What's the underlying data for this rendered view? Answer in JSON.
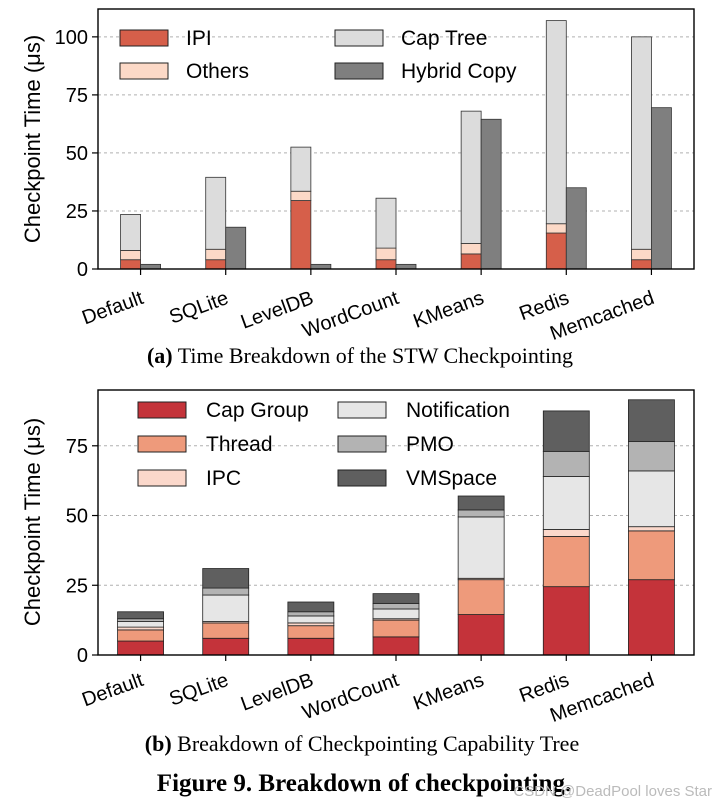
{
  "figure_title": "Figure 9. Breakdown of checkpointing.",
  "watermark": "CSDN @DeadPool loves Star",
  "chart_data": [
    {
      "id": "a",
      "type": "bar",
      "caption_prefix": "(a)",
      "caption": "Time Breakdown of the STW Checkpointing",
      "ylabel": "Checkpoint Time (μs)",
      "ylim": [
        0,
        112
      ],
      "yticks": [
        0,
        25,
        50,
        75,
        100
      ],
      "grid": true,
      "legend_placement": "top-left",
      "categories": [
        "Default",
        "SQLite",
        "LevelDB",
        "WordCount",
        "KMeans",
        "Redis",
        "Memcached"
      ],
      "stacked_groups": [
        {
          "name": "Stacked",
          "series": [
            {
              "name": "IPI",
              "color": "#d65f4a",
              "values": [
                4,
                4,
                29.5,
                4,
                6.5,
                15.5,
                4
              ]
            },
            {
              "name": "Others",
              "color": "#fcd9c7",
              "values": [
                4,
                4.5,
                4,
                5,
                4.5,
                4,
                4.5
              ]
            },
            {
              "name": "Cap Tree",
              "color": "#dcdcdc",
              "values": [
                15.5,
                31,
                19,
                21.5,
                57,
                87.5,
                91.5
              ]
            }
          ]
        },
        {
          "name": "Single",
          "series": [
            {
              "name": "Hybrid Copy",
              "color": "#7f7f7f",
              "values": [
                2,
                18,
                2,
                2,
                64.5,
                35,
                69.5
              ]
            }
          ]
        }
      ],
      "legend": [
        {
          "name": "IPI",
          "color": "#d65f4a"
        },
        {
          "name": "Cap Tree",
          "color": "#dcdcdc"
        },
        {
          "name": "Others",
          "color": "#fcd9c7"
        },
        {
          "name": "Hybrid Copy",
          "color": "#7f7f7f"
        }
      ]
    },
    {
      "id": "b",
      "type": "bar",
      "caption_prefix": "(b)",
      "caption": "Breakdown of Checkpointing Capability Tree",
      "ylabel": "Checkpoint Time (μs)",
      "ylim": [
        0,
        95
      ],
      "yticks": [
        0,
        25,
        50,
        75
      ],
      "grid": true,
      "legend_placement": "top-left",
      "categories": [
        "Default",
        "SQLite",
        "LevelDB",
        "WordCount",
        "KMeans",
        "Redis",
        "Memcached"
      ],
      "series": [
        {
          "name": "Cap Group",
          "color": "#c4333a",
          "values": [
            5,
            6,
            6,
            6.5,
            14.5,
            24.5,
            27
          ]
        },
        {
          "name": "Thread",
          "color": "#ee9a7b",
          "values": [
            4,
            5.5,
            4.5,
            6,
            12.5,
            18,
            17.5
          ]
        },
        {
          "name": "IPC",
          "color": "#fbd8cb",
          "values": [
            1,
            0.5,
            1,
            0.5,
            0.5,
            2.5,
            1.5
          ]
        },
        {
          "name": "Notification",
          "color": "#e6e6e6",
          "values": [
            2,
            9.5,
            2.5,
            3.5,
            22,
            19,
            20
          ]
        },
        {
          "name": "PMO",
          "color": "#b3b3b3",
          "values": [
            1,
            2.5,
            1.5,
            2,
            2.5,
            9,
            10.5
          ]
        },
        {
          "name": "VMSpace",
          "color": "#5f5f5f",
          "values": [
            2.5,
            7,
            3.5,
            3.5,
            5,
            14.5,
            15
          ]
        }
      ],
      "legend": [
        {
          "name": "Cap Group",
          "color": "#c4333a"
        },
        {
          "name": "Notification",
          "color": "#e6e6e6"
        },
        {
          "name": "Thread",
          "color": "#ee9a7b"
        },
        {
          "name": "PMO",
          "color": "#b3b3b3"
        },
        {
          "name": "IPC",
          "color": "#fbd8cb"
        },
        {
          "name": "VMSpace",
          "color": "#5f5f5f"
        }
      ]
    }
  ]
}
